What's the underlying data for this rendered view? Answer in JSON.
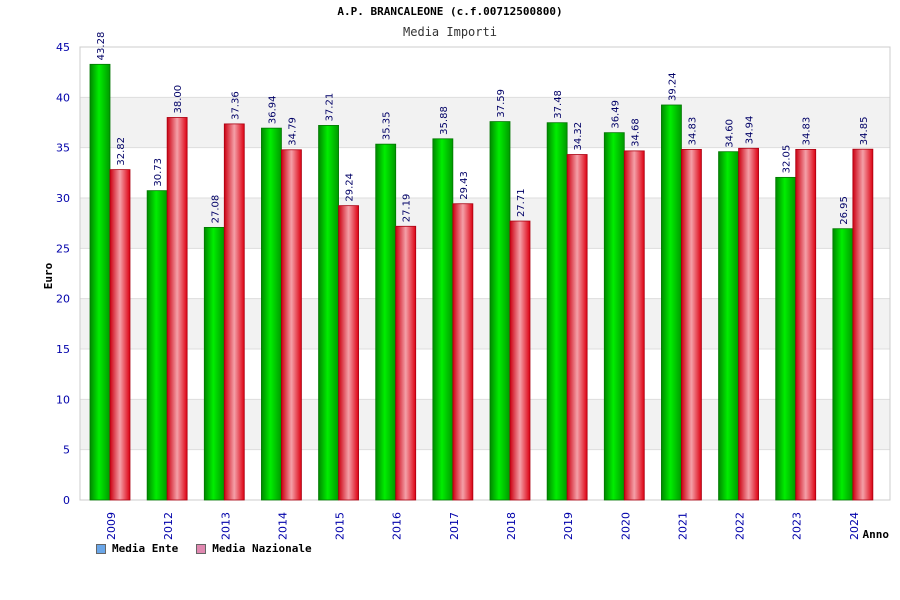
{
  "chart_data": {
    "type": "bar",
    "title": "A.P. BRANCALEONE (c.f.00712500800)",
    "subtitle": "Media Importi",
    "xlabel": "Anno",
    "ylabel": "Euro",
    "ylim": [
      0,
      45
    ],
    "ystep": 5,
    "categories": [
      "2009",
      "2012",
      "2013",
      "2014",
      "2015",
      "2016",
      "2017",
      "2018",
      "2019",
      "2020",
      "2021",
      "2022",
      "2023",
      "2024"
    ],
    "series": [
      {
        "name": "Media Ente",
        "color": "#00cc00",
        "legend_color": "#6aa6e8",
        "values": [
          43.28,
          30.73,
          27.08,
          36.94,
          37.21,
          35.35,
          35.88,
          37.59,
          37.48,
          36.49,
          39.24,
          34.6,
          32.05,
          26.95
        ],
        "labels": [
          "43.28",
          "30.73",
          "27.08",
          "36.94",
          "37.21",
          "35.35",
          "35.88",
          "37.59",
          "37.48",
          "36.49",
          "39.24",
          "34.60",
          "32.05",
          "26.95"
        ]
      },
      {
        "name": "Media Nazionale",
        "color": "#ee2233",
        "legend_color": "#e088b0",
        "values": [
          32.82,
          38.0,
          37.36,
          34.79,
          29.24,
          27.19,
          29.43,
          27.71,
          34.32,
          34.68,
          34.83,
          34.94,
          34.83,
          34.85
        ],
        "labels": [
          "32.82",
          "38.00",
          "37.36",
          "34.79",
          "29.24",
          "27.19",
          "29.43",
          "27.71",
          "34.32",
          "34.68",
          "34.83",
          "34.94",
          "34.83",
          "34.85"
        ]
      }
    ],
    "grid": true,
    "legend_position": "bottom-left"
  },
  "colors": {
    "axis_text": "#0000aa",
    "grid_band": "#f2f2f2",
    "grid_line": "#dddddd"
  }
}
